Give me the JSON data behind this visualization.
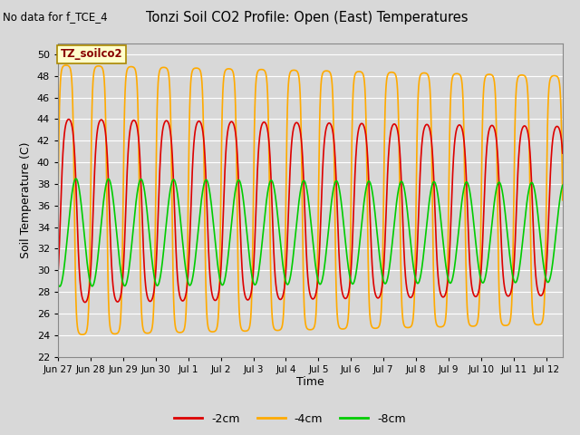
{
  "title": "Tonzi Soil CO2 Profile: Open (East) Temperatures",
  "subtitle": "No data for f_TCE_4",
  "ylabel": "Soil Temperature (C)",
  "xlabel": "Time",
  "ylim": [
    22,
    51
  ],
  "yticks": [
    22,
    24,
    26,
    28,
    30,
    32,
    34,
    36,
    38,
    40,
    42,
    44,
    46,
    48,
    50
  ],
  "legend_label": "TZ_soilco2",
  "series_labels": [
    "-2cm",
    "-4cm",
    "-8cm"
  ],
  "series_colors": [
    "#dd0000",
    "#ffaa00",
    "#00cc00"
  ],
  "series_linewidths": [
    1.2,
    1.2,
    1.2
  ],
  "background_color": "#d8d8d8",
  "plot_bg_color": "#d8d8d8",
  "grid_color": "#ffffff",
  "xtick_labels": [
    "Jun 27",
    "Jun 28",
    "Jun 29",
    "Jun 30",
    "Jul 1",
    "Jul 2",
    "Jul 3",
    "Jul 4",
    "Jul 5",
    "Jul 6",
    "Jul 7",
    "Jul 8",
    "Jul 9",
    "Jul 10",
    "Jul 11",
    "Jul 12"
  ],
  "n_days": 15.5
}
